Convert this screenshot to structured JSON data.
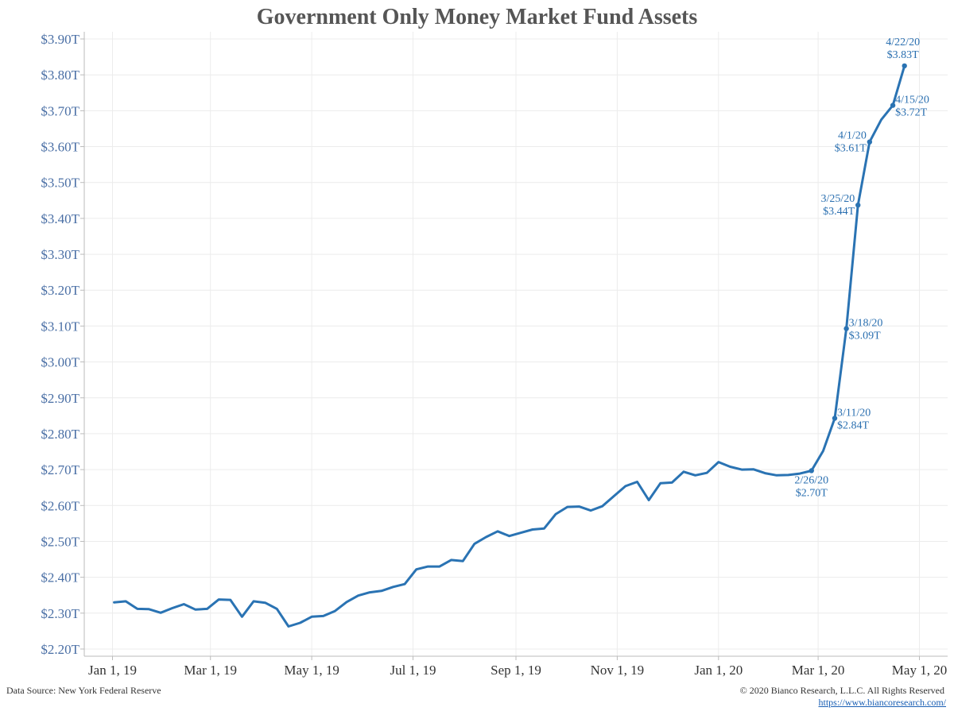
{
  "chart_data": {
    "type": "line",
    "title": "Government Only Money Market Fund Assets",
    "ylim": [
      2.18,
      3.92
    ],
    "y_ticks": [
      2.2,
      2.3,
      2.4,
      2.5,
      2.6,
      2.7,
      2.8,
      2.9,
      3.0,
      3.1,
      3.2,
      3.3,
      3.4,
      3.5,
      3.6,
      3.7,
      3.8,
      3.9
    ],
    "y_tick_labels": [
      "$2.20T",
      "$2.30T",
      "$2.40T",
      "$2.50T",
      "$2.60T",
      "$2.70T",
      "$2.80T",
      "$2.90T",
      "$3.00T",
      "$3.10T",
      "$3.20T",
      "$3.30T",
      "$3.40T",
      "$3.50T",
      "$3.60T",
      "$3.70T",
      "$3.80T",
      "$3.90T"
    ],
    "x_ticks": [
      "2019-01-01",
      "2019-03-01",
      "2019-05-01",
      "2019-07-01",
      "2019-09-01",
      "2019-11-01",
      "2020-01-01",
      "2020-03-01",
      "2020-05-01"
    ],
    "x_tick_labels": [
      "Jan 1, 19",
      "Mar 1, 19",
      "May 1, 19",
      "Jul 1, 19",
      "Sep 1, 19",
      "Nov 1, 19",
      "Jan 1, 20",
      "Mar 1, 20",
      "May 1, 20"
    ],
    "xlim": [
      "2018-12-15",
      "2020-05-18"
    ],
    "grid": true,
    "color": "#2a73b3",
    "series": [
      {
        "x": [
          "2019-01-02",
          "2019-01-09",
          "2019-01-16",
          "2019-01-23",
          "2019-01-30",
          "2019-02-06",
          "2019-02-13",
          "2019-02-20",
          "2019-02-27",
          "2019-03-06",
          "2019-03-13",
          "2019-03-20",
          "2019-03-27",
          "2019-04-03",
          "2019-04-10",
          "2019-04-17",
          "2019-04-24",
          "2019-05-01",
          "2019-05-08",
          "2019-05-15",
          "2019-05-22",
          "2019-05-29",
          "2019-06-05",
          "2019-06-12",
          "2019-06-19",
          "2019-06-26",
          "2019-07-03",
          "2019-07-10",
          "2019-07-17",
          "2019-07-24",
          "2019-07-31",
          "2019-08-07",
          "2019-08-14",
          "2019-08-21",
          "2019-08-28",
          "2019-09-04",
          "2019-09-11",
          "2019-09-18",
          "2019-09-25",
          "2019-10-02",
          "2019-10-09",
          "2019-10-16",
          "2019-10-23",
          "2019-10-30",
          "2019-11-06",
          "2019-11-13",
          "2019-11-20",
          "2019-11-27",
          "2019-12-04",
          "2019-12-11",
          "2019-12-18",
          "2019-12-25",
          "2020-01-01",
          "2020-01-08",
          "2020-01-15",
          "2020-01-22",
          "2020-01-29",
          "2020-02-05",
          "2020-02-12",
          "2020-02-19",
          "2020-02-26",
          "2020-03-04",
          "2020-03-11",
          "2020-03-18",
          "2020-03-25",
          "2020-04-01",
          "2020-04-08",
          "2020-04-15",
          "2020-04-22"
        ],
        "values": [
          2.33,
          2.333,
          2.312,
          2.311,
          2.301,
          2.314,
          2.325,
          2.31,
          2.312,
          2.338,
          2.337,
          2.29,
          2.333,
          2.329,
          2.312,
          2.263,
          2.273,
          2.29,
          2.292,
          2.306,
          2.331,
          2.349,
          2.358,
          2.362,
          2.373,
          2.381,
          2.422,
          2.43,
          2.43,
          2.448,
          2.445,
          2.493,
          2.512,
          2.528,
          2.515,
          2.524,
          2.533,
          2.536,
          2.576,
          2.596,
          2.597,
          2.586,
          2.598,
          2.626,
          2.654,
          2.666,
          2.615,
          2.662,
          2.664,
          2.694,
          2.684,
          2.691,
          2.721,
          2.708,
          2.7,
          2.701,
          2.69,
          2.684,
          2.685,
          2.689,
          2.697,
          2.752,
          2.843,
          3.093,
          3.437,
          3.613,
          3.675,
          3.715,
          3.825
        ]
      }
    ],
    "annotations": [
      {
        "x": "2020-02-26",
        "y": 2.697,
        "date": "2/26/20",
        "value": "$2.70T",
        "pos": "below"
      },
      {
        "x": "2020-03-11",
        "y": 2.843,
        "date": "3/11/20",
        "value": "$2.84T",
        "pos": "right"
      },
      {
        "x": "2020-03-18",
        "y": 3.093,
        "date": "3/18/20",
        "value": "$3.09T",
        "pos": "right"
      },
      {
        "x": "2020-03-25",
        "y": 3.437,
        "date": "3/25/20",
        "value": "$3.44T",
        "pos": "left"
      },
      {
        "x": "2020-04-01",
        "y": 3.613,
        "date": "4/1/20",
        "value": "$3.61T",
        "pos": "left"
      },
      {
        "x": "2020-04-15",
        "y": 3.715,
        "date": "4/15/20",
        "value": "$3.72T",
        "pos": "right"
      },
      {
        "x": "2020-04-22",
        "y": 3.825,
        "date": "4/22/20",
        "value": "$3.83T",
        "pos": "above"
      }
    ]
  },
  "footer": {
    "source": "Data Source: New York Federal Reserve",
    "copyright": "© 2020 Bianco Research, L.L.C. All Rights Reserved",
    "url": "https://www.biancoresearch.com/"
  }
}
